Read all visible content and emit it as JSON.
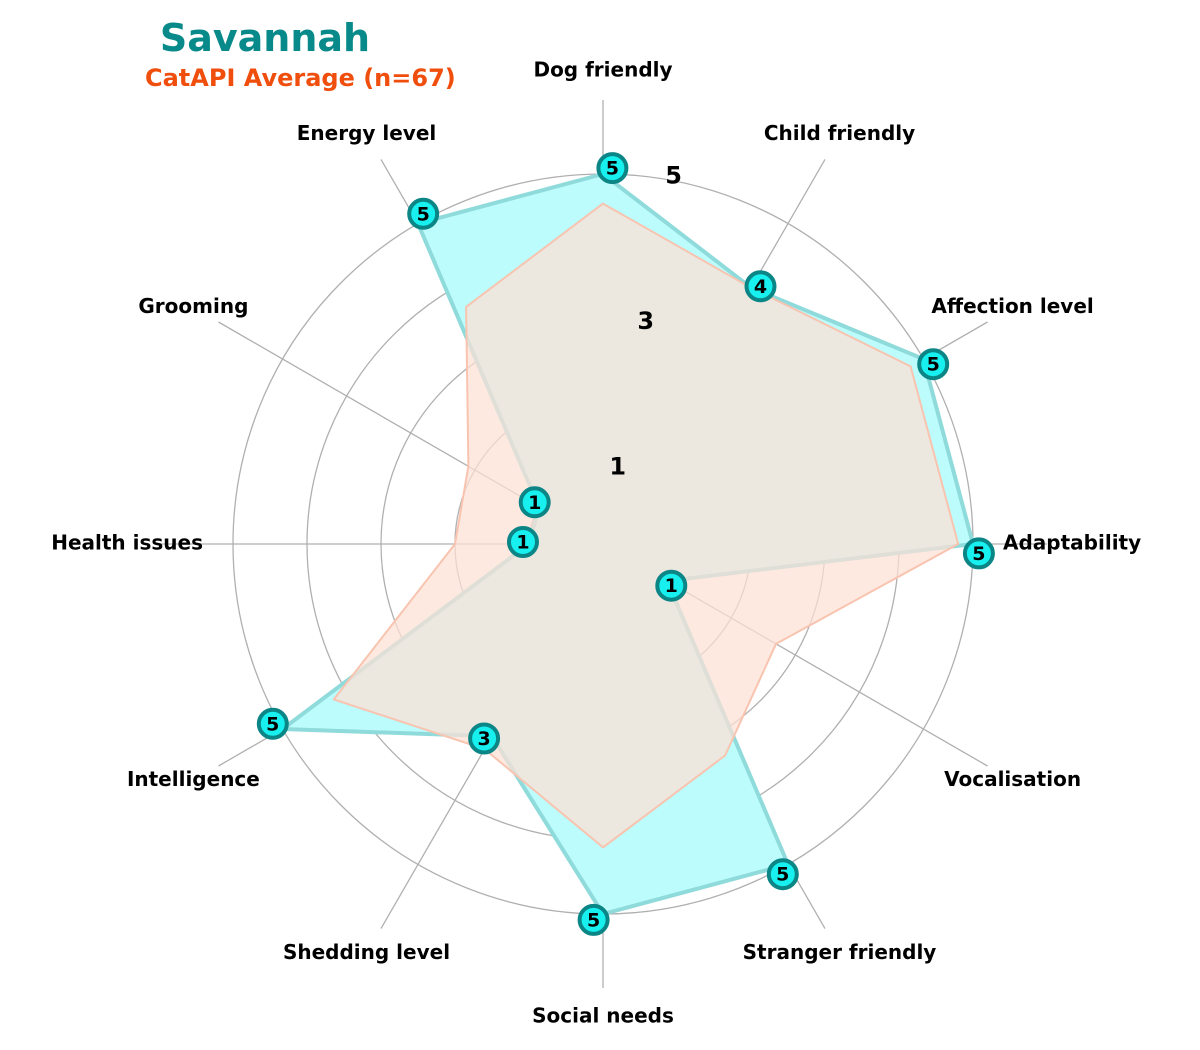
{
  "chart_data": {
    "type": "radar",
    "title": "Savannah",
    "subtitle": "CatAPI Average (n=67)",
    "axes": [
      "Dog friendly",
      "Child friendly",
      "Affection level",
      "Adaptability",
      "Vocalisation",
      "Stranger friendly",
      "Social needs",
      "Shedding level",
      "Intelligence",
      "Health issues",
      "Grooming",
      "Energy level"
    ],
    "rlim": [
      0,
      5
    ],
    "rticks": [
      1,
      3,
      5
    ],
    "grid": true,
    "series": [
      {
        "values": [
          5,
          4,
          5,
          5,
          1,
          5,
          5,
          3,
          5,
          1,
          1,
          5
        ]
      },
      {
        "values": [
          4.6,
          4.0,
          4.8,
          4.8,
          2.7,
          3.3,
          4.1,
          3.2,
          4.2,
          2.0,
          2.1,
          3.7
        ]
      }
    ],
    "colors": {
      "title": "#088a8a",
      "subtitle": "#f04e0c",
      "breed_fill": "#bdfcfc",
      "breed_line": "#8fdada",
      "marker_fill": "#18f0f0",
      "marker_edge": "#0b8585",
      "average_fill": "#fde0d6",
      "average_line": "#f8c4b0",
      "grid": "#b0b0b0",
      "text": "#000000"
    }
  }
}
